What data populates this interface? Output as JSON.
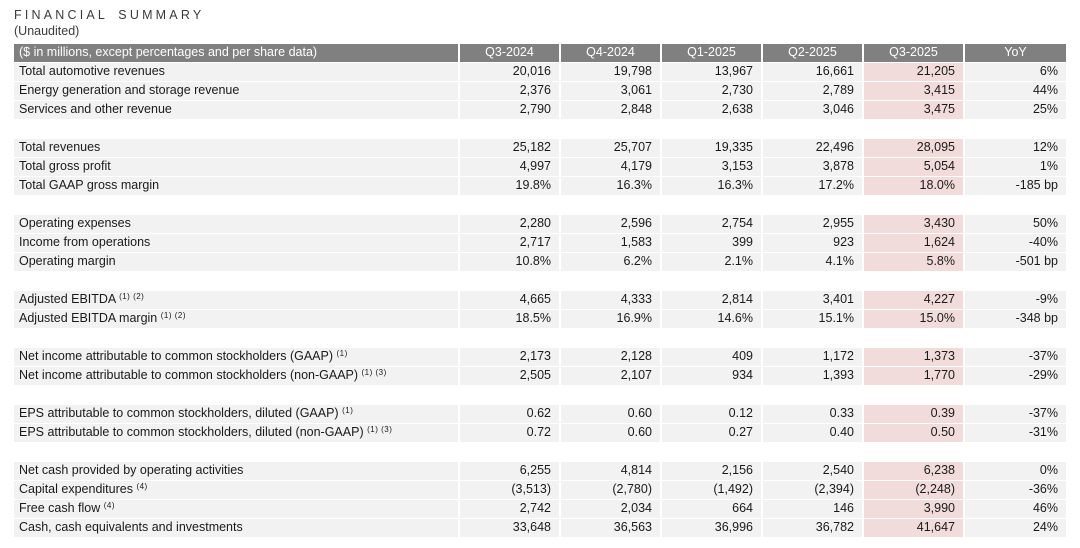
{
  "title": "FINANCIAL SUMMARY",
  "subtitle": "(Unaudited)",
  "colors": {
    "header_bg": "#808080",
    "header_text": "#ffffff",
    "row_bg": "#f2f2f2",
    "highlight_bg": "#f2dcdb",
    "title_text": "#3b3b3b",
    "body_text": "#1a1a1a"
  },
  "table": {
    "header": [
      "($ in millions, except percentages and per share data)",
      "Q3-2024",
      "Q4-2024",
      "Q1-2025",
      "Q2-2025",
      "Q3-2025",
      "YoY"
    ],
    "highlight_column": "Q3-2025",
    "highlight_column_index": 4,
    "sections": [
      {
        "rows": [
          {
            "label": "Total automotive revenues",
            "sup": "",
            "values": [
              "20,016",
              "19,798",
              "13,967",
              "16,661",
              "21,205",
              "6%"
            ]
          },
          {
            "label": "Energy generation and storage revenue",
            "sup": "",
            "values": [
              "2,376",
              "3,061",
              "2,730",
              "2,789",
              "3,415",
              "44%"
            ]
          },
          {
            "label": "Services and other revenue",
            "sup": "",
            "values": [
              "2,790",
              "2,848",
              "2,638",
              "3,046",
              "3,475",
              "25%"
            ]
          }
        ]
      },
      {
        "rows": [
          {
            "label": "Total revenues",
            "sup": "",
            "values": [
              "25,182",
              "25,707",
              "19,335",
              "22,496",
              "28,095",
              "12%"
            ]
          },
          {
            "label": "Total gross profit",
            "sup": "",
            "values": [
              "4,997",
              "4,179",
              "3,153",
              "3,878",
              "5,054",
              "1%"
            ]
          },
          {
            "label": "Total GAAP gross margin",
            "sup": "",
            "values": [
              "19.8%",
              "16.3%",
              "16.3%",
              "17.2%",
              "18.0%",
              "-185 bp"
            ]
          }
        ]
      },
      {
        "rows": [
          {
            "label": "Operating expenses",
            "sup": "",
            "values": [
              "2,280",
              "2,596",
              "2,754",
              "2,955",
              "3,430",
              "50%"
            ]
          },
          {
            "label": "Income from operations",
            "sup": "",
            "values": [
              "2,717",
              "1,583",
              "399",
              "923",
              "1,624",
              "-40%"
            ]
          },
          {
            "label": "Operating margin",
            "sup": "",
            "values": [
              "10.8%",
              "6.2%",
              "2.1%",
              "4.1%",
              "5.8%",
              "-501 bp"
            ]
          }
        ]
      },
      {
        "rows": [
          {
            "label": "Adjusted EBITDA",
            "sup": "(1) (2)",
            "values": [
              "4,665",
              "4,333",
              "2,814",
              "3,401",
              "4,227",
              "-9%"
            ]
          },
          {
            "label": "Adjusted EBITDA margin",
            "sup": "(1) (2)",
            "values": [
              "18.5%",
              "16.9%",
              "14.6%",
              "15.1%",
              "15.0%",
              "-348 bp"
            ]
          }
        ]
      },
      {
        "rows": [
          {
            "label": "Net income attributable to common stockholders (GAAP)",
            "sup": "(1)",
            "values": [
              "2,173",
              "2,128",
              "409",
              "1,172",
              "1,373",
              "-37%"
            ]
          },
          {
            "label": "Net income attributable to common stockholders (non-GAAP)",
            "sup": "(1) (3)",
            "values": [
              "2,505",
              "2,107",
              "934",
              "1,393",
              "1,770",
              "-29%"
            ]
          }
        ]
      },
      {
        "rows": [
          {
            "label": "EPS attributable to common stockholders, diluted (GAAP)",
            "sup": "(1)",
            "values": [
              "0.62",
              "0.60",
              "0.12",
              "0.33",
              "0.39",
              "-37%"
            ]
          },
          {
            "label": "EPS attributable to common stockholders, diluted (non-GAAP)",
            "sup": "(1) (3)",
            "values": [
              "0.72",
              "0.60",
              "0.27",
              "0.40",
              "0.50",
              "-31%"
            ]
          }
        ]
      },
      {
        "rows": [
          {
            "label": "Net cash provided by operating activities",
            "sup": "",
            "values": [
              "6,255",
              "4,814",
              "2,156",
              "2,540",
              "6,238",
              "0%"
            ]
          },
          {
            "label": "Capital expenditures",
            "sup": "(4)",
            "values": [
              "(3,513)",
              "(2,780)",
              "(1,492)",
              "(2,394)",
              "(2,248)",
              "-36%"
            ]
          },
          {
            "label": "Free cash flow",
            "sup": "(4)",
            "values": [
              "2,742",
              "2,034",
              "664",
              "146",
              "3,990",
              "46%"
            ]
          },
          {
            "label": "Cash, cash equivalents and investments",
            "sup": "",
            "values": [
              "33,648",
              "36,563",
              "36,996",
              "36,782",
              "41,647",
              "24%"
            ]
          }
        ]
      }
    ]
  }
}
